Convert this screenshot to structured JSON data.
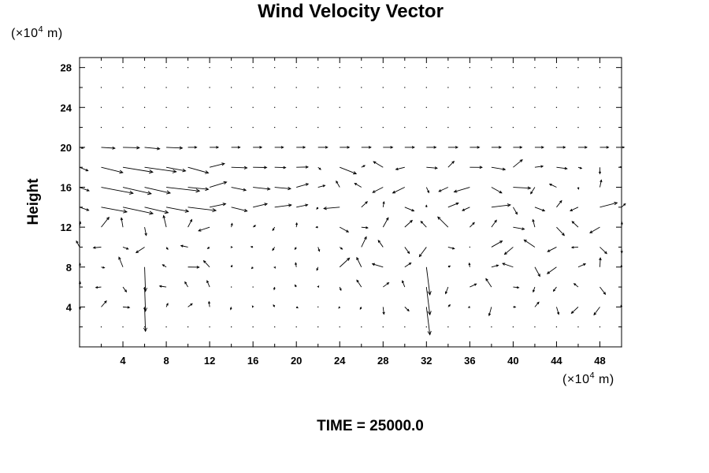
{
  "chart_data": {
    "type": "vector_field",
    "title": "Wind Velocity Vector",
    "xunit": {
      "prefix": "(×10",
      "exp": "4",
      "suffix": " m)"
    },
    "yunit": {
      "prefix": "(×10",
      "exp": "4",
      "suffix": " m)"
    },
    "ylabel": "Height",
    "xlabel": "",
    "annotation": "TIME = 25000.0",
    "xlim": [
      0,
      50
    ],
    "ylim": [
      0,
      29
    ],
    "xticks": [
      4,
      8,
      12,
      16,
      20,
      24,
      28,
      32,
      36,
      40,
      44,
      48
    ],
    "yticks": [
      4,
      8,
      12,
      16,
      20,
      24,
      28
    ],
    "grid_points": {
      "x_start": 0,
      "x_step": 2,
      "x_count": 26,
      "y_start": 0,
      "y_step": 2,
      "y_count": 15
    },
    "vectors_sample": [
      {
        "x": 2,
        "y": 19,
        "u": 1.6,
        "v": -0.3
      },
      {
        "x": 4,
        "y": 18,
        "u": 1.4,
        "v": -0.5
      },
      {
        "x": 6,
        "y": 17,
        "u": 1.2,
        "v": -0.6
      },
      {
        "x": 8,
        "y": 16,
        "u": 1.3,
        "v": -0.4
      },
      {
        "x": 6,
        "y": 6,
        "u": 0.0,
        "v": -1.2
      },
      {
        "x": 32,
        "y": 6,
        "u": 0.2,
        "v": -1.5
      },
      {
        "x": 38,
        "y": 10,
        "u": -0.4,
        "v": 1.0
      },
      {
        "x": 46,
        "y": 10,
        "u": -0.3,
        "v": -0.9
      }
    ],
    "grid": false
  }
}
